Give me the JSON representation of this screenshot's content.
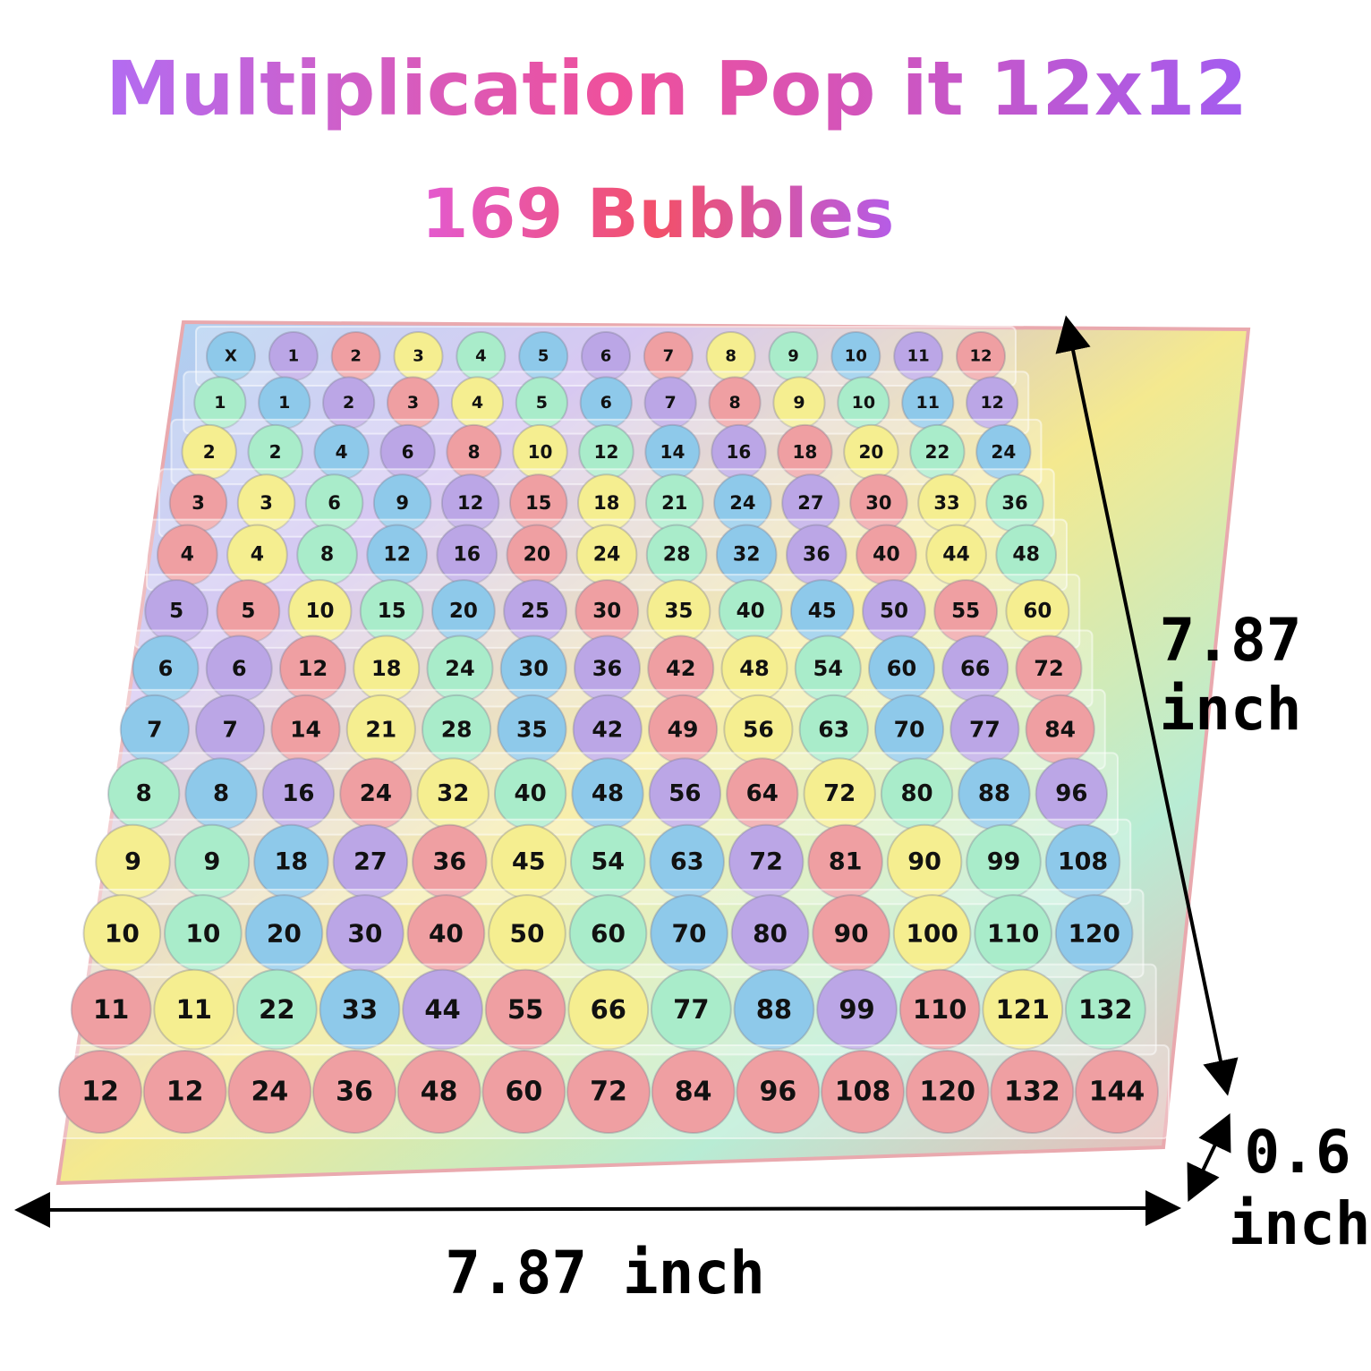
{
  "header": {
    "title": "Multiplication Pop it 12x12",
    "subtitle": "169 Bubbles"
  },
  "grid": {
    "rows": [
      [
        "X",
        1,
        2,
        3,
        4,
        5,
        6,
        7,
        8,
        9,
        10,
        11,
        12
      ],
      [
        1,
        1,
        2,
        3,
        4,
        5,
        6,
        7,
        8,
        9,
        10,
        11,
        12
      ],
      [
        2,
        2,
        4,
        6,
        8,
        10,
        12,
        14,
        16,
        18,
        20,
        22,
        24
      ],
      [
        3,
        3,
        6,
        9,
        12,
        15,
        18,
        21,
        24,
        27,
        30,
        33,
        36
      ],
      [
        4,
        4,
        8,
        12,
        16,
        20,
        24,
        28,
        32,
        36,
        40,
        44,
        48
      ],
      [
        5,
        5,
        10,
        15,
        20,
        25,
        30,
        35,
        40,
        45,
        50,
        55,
        60
      ],
      [
        6,
        6,
        12,
        18,
        24,
        30,
        36,
        42,
        48,
        54,
        60,
        66,
        72
      ],
      [
        7,
        7,
        14,
        21,
        28,
        35,
        42,
        49,
        56,
        63,
        70,
        77,
        84
      ],
      [
        8,
        8,
        16,
        24,
        32,
        40,
        48,
        56,
        64,
        72,
        80,
        88,
        96
      ],
      [
        9,
        9,
        18,
        27,
        36,
        45,
        54,
        63,
        72,
        81,
        90,
        99,
        108
      ],
      [
        10,
        10,
        20,
        30,
        40,
        50,
        60,
        70,
        80,
        90,
        100,
        110,
        120
      ],
      [
        11,
        11,
        22,
        33,
        44,
        55,
        66,
        77,
        88,
        99,
        110,
        121,
        132
      ],
      [
        12,
        12,
        24,
        36,
        48,
        60,
        72,
        84,
        96,
        108,
        120,
        132,
        144
      ]
    ]
  },
  "dimensions": {
    "height": {
      "number": "7.87",
      "unit": "inch"
    },
    "depth": {
      "number": "0.6",
      "unit": "inch"
    },
    "width": "7.87 inch"
  }
}
